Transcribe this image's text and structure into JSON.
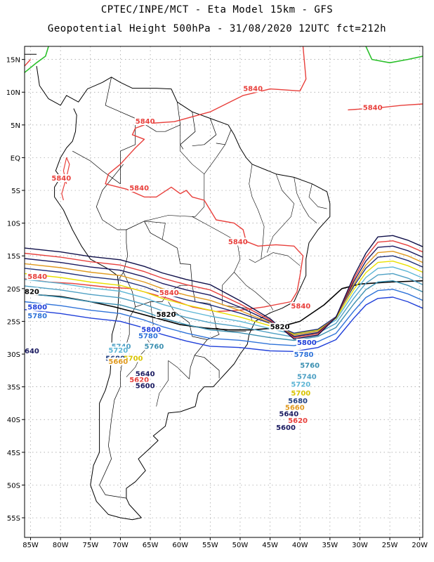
{
  "header": {
    "line1": "CPTEC/INPE/MCT -  Eta Model 15km - GFS",
    "line2": "Geopotential Height 500hPa - 31/08/2020 12UTC fct=212h"
  },
  "axes": {
    "lat_labels": [
      "15N",
      "10N",
      "5N",
      "EQ",
      "5S",
      "10S",
      "15S",
      "20S",
      "25S",
      "30S",
      "35S",
      "40S",
      "45S",
      "50S",
      "55S"
    ],
    "lat_values": [
      15,
      10,
      5,
      0,
      -5,
      -10,
      -15,
      -20,
      -25,
      -30,
      -35,
      -40,
      -45,
      -50,
      -55
    ],
    "lon_labels": [
      "85W",
      "80W",
      "75W",
      "70W",
      "65W",
      "60W",
      "55W",
      "50W",
      "45W",
      "40W",
      "35W",
      "30W",
      "25W",
      "20W"
    ],
    "lon_values": [
      -85,
      -80,
      -75,
      -70,
      -65,
      -60,
      -55,
      -50,
      -45,
      -40,
      -35,
      -30,
      -25,
      -20
    ],
    "lon_range": [
      -86,
      -19.5
    ],
    "lat_range": [
      -58,
      17
    ],
    "grid": "dotted"
  },
  "contour_labels": [
    {
      "id": "l5840a",
      "text": "5840",
      "lon": -49.5,
      "lat": 10.2,
      "color": "#e8403c"
    },
    {
      "id": "l5840b",
      "text": "5840",
      "lon": -29.5,
      "lat": 7.3,
      "color": "#e8403c"
    },
    {
      "id": "l5840c",
      "text": "5840",
      "lon": -67.5,
      "lat": 5.2,
      "color": "#e8403c"
    },
    {
      "id": "l5840d",
      "text": "5840",
      "lon": -81.5,
      "lat": -3.5,
      "color": "#e8403c"
    },
    {
      "id": "l5840e",
      "text": "5840",
      "lon": -68.5,
      "lat": -5.0,
      "color": "#e8403c"
    },
    {
      "id": "l5840f",
      "text": "5840",
      "lon": -52,
      "lat": -13.2,
      "color": "#e8403c"
    },
    {
      "id": "l5840g",
      "text": "5840",
      "lon": -85.5,
      "lat": -18.5,
      "color": "#e8403c"
    },
    {
      "id": "l5840h",
      "text": "5840",
      "lon": -63.5,
      "lat": -21.0,
      "color": "#e8403c"
    },
    {
      "id": "l5840i",
      "text": "5840",
      "lon": -41.5,
      "lat": -23.0,
      "color": "#e8403c"
    },
    {
      "id": "l5820a",
      "text": "820",
      "lon": -86,
      "lat": -20.8,
      "color": "#000000"
    },
    {
      "id": "l5820b",
      "text": "5820",
      "lon": -64,
      "lat": -24.3,
      "color": "#000000"
    },
    {
      "id": "l5820c",
      "text": "5820",
      "lon": -45,
      "lat": -26.2,
      "color": "#000000"
    },
    {
      "id": "l5800a",
      "text": "5800",
      "lon": -85.5,
      "lat": -23.2,
      "color": "#1f3fd9"
    },
    {
      "id": "l5800b",
      "text": "5800",
      "lon": -66.5,
      "lat": -26.6,
      "color": "#1f3fd9"
    },
    {
      "id": "l5800c",
      "text": "5800",
      "lon": -40.5,
      "lat": -28.6,
      "color": "#1f3fd9"
    },
    {
      "id": "l5780a",
      "text": "5780",
      "lon": -85.5,
      "lat": -24.5,
      "color": "#2f73d9"
    },
    {
      "id": "l5780b",
      "text": "5780",
      "lon": -67,
      "lat": -27.6,
      "color": "#2f73d9"
    },
    {
      "id": "l5780c",
      "text": "5780",
      "lon": -41,
      "lat": -30.4,
      "color": "#2f73d9"
    },
    {
      "id": "l5760a",
      "text": "5760",
      "lon": -66,
      "lat": -29.2,
      "color": "#3a8fb0"
    },
    {
      "id": "l5760b",
      "text": "5760",
      "lon": -40,
      "lat": -32.1,
      "color": "#3a8fb0"
    },
    {
      "id": "l5740a",
      "text": "5740",
      "lon": -71.5,
      "lat": -29.2,
      "color": "#4ea0c4"
    },
    {
      "id": "l5740b",
      "text": "5740",
      "lon": -40.5,
      "lat": -33.8,
      "color": "#4ea0c4"
    },
    {
      "id": "l5720a",
      "text": "5720",
      "lon": -72,
      "lat": -29.8,
      "color": "#5cb5d5"
    },
    {
      "id": "l5720b",
      "text": "5720",
      "lon": -41.5,
      "lat": -35.0,
      "color": "#5cb5d5"
    },
    {
      "id": "l5700a",
      "text": "5700",
      "lon": -69.5,
      "lat": -31.0,
      "color": "#d9c400"
    },
    {
      "id": "l5700b",
      "text": "5700",
      "lon": -41.5,
      "lat": -36.3,
      "color": "#d9c400"
    },
    {
      "id": "l5680a",
      "text": "5680",
      "lon": -72.5,
      "lat": -31.0,
      "color": "#1f3f80"
    },
    {
      "id": "l5680b",
      "text": "5680",
      "lon": -42,
      "lat": -37.5,
      "color": "#1f3f80"
    },
    {
      "id": "l5660a",
      "text": "5660",
      "lon": -72,
      "lat": -31.5,
      "color": "#e09a20"
    },
    {
      "id": "l5660b",
      "text": "5660",
      "lon": -42.5,
      "lat": -38.5,
      "color": "#e09a20"
    },
    {
      "id": "l5640a",
      "text": "5640",
      "lon": -67.5,
      "lat": -33.4,
      "color": "#1a1a60"
    },
    {
      "id": "l5640b",
      "text": "5640",
      "lon": -43.5,
      "lat": -39.5,
      "color": "#1a1a60"
    },
    {
      "id": "l5640c",
      "text": "640",
      "lon": -86,
      "lat": -29.9,
      "color": "#1a1a60"
    },
    {
      "id": "l5620a",
      "text": "5620",
      "lon": -68.5,
      "lat": -34.3,
      "color": "#e8403c"
    },
    {
      "id": "l5620b",
      "text": "5620",
      "lon": -42,
      "lat": -40.5,
      "color": "#e8403c"
    },
    {
      "id": "l5600a",
      "text": "5600",
      "lon": -67.5,
      "lat": -35.2,
      "color": "#1a1a60"
    },
    {
      "id": "l5600b",
      "text": "5600",
      "lon": -44,
      "lat": -41.6,
      "color": "#1a1a60"
    }
  ],
  "colors": {
    "c5840": "#e8403c",
    "c5820": "#000000",
    "c5800": "#1f3fd9",
    "c5780": "#2f73d9",
    "c5760": "#3a8fb0",
    "c5740": "#4ea0c4",
    "c5720": "#5cb5d5",
    "c5700": "#e8e000",
    "c5680": "#20307a",
    "c5660": "#e09a20",
    "c5640": "#1a1a60",
    "c5620": "#e8403c",
    "c5600": "#10104a",
    "c5860": "#2bc02b"
  }
}
